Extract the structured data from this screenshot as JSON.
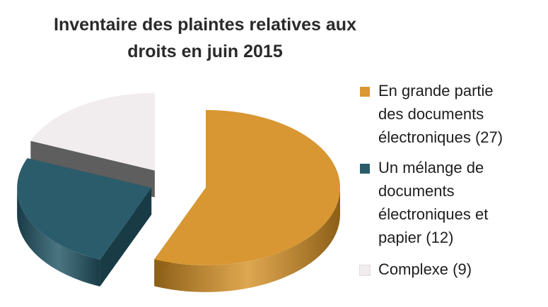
{
  "chart_data": {
    "type": "pie",
    "title_lines": [
      "Inventaire des plaintes relatives aux",
      "droits en juin 2015"
    ],
    "slices": [
      {
        "label": "En grande partie\ndes documents\nélectroniques (27)",
        "value": 27,
        "color": "#D89732",
        "side": "#8B5E17"
      },
      {
        "label": "Un mélange de\ndocuments\nélectroniques et\npapier (12)",
        "value": 12,
        "color": "#2B5C6B",
        "side": "#183B46"
      },
      {
        "label": "Complexe (9)",
        "value": 9,
        "color": "#F1ECEE",
        "side": "#5E5E5E"
      }
    ],
    "legend_position": "right",
    "exploded": true,
    "style": "3d"
  }
}
